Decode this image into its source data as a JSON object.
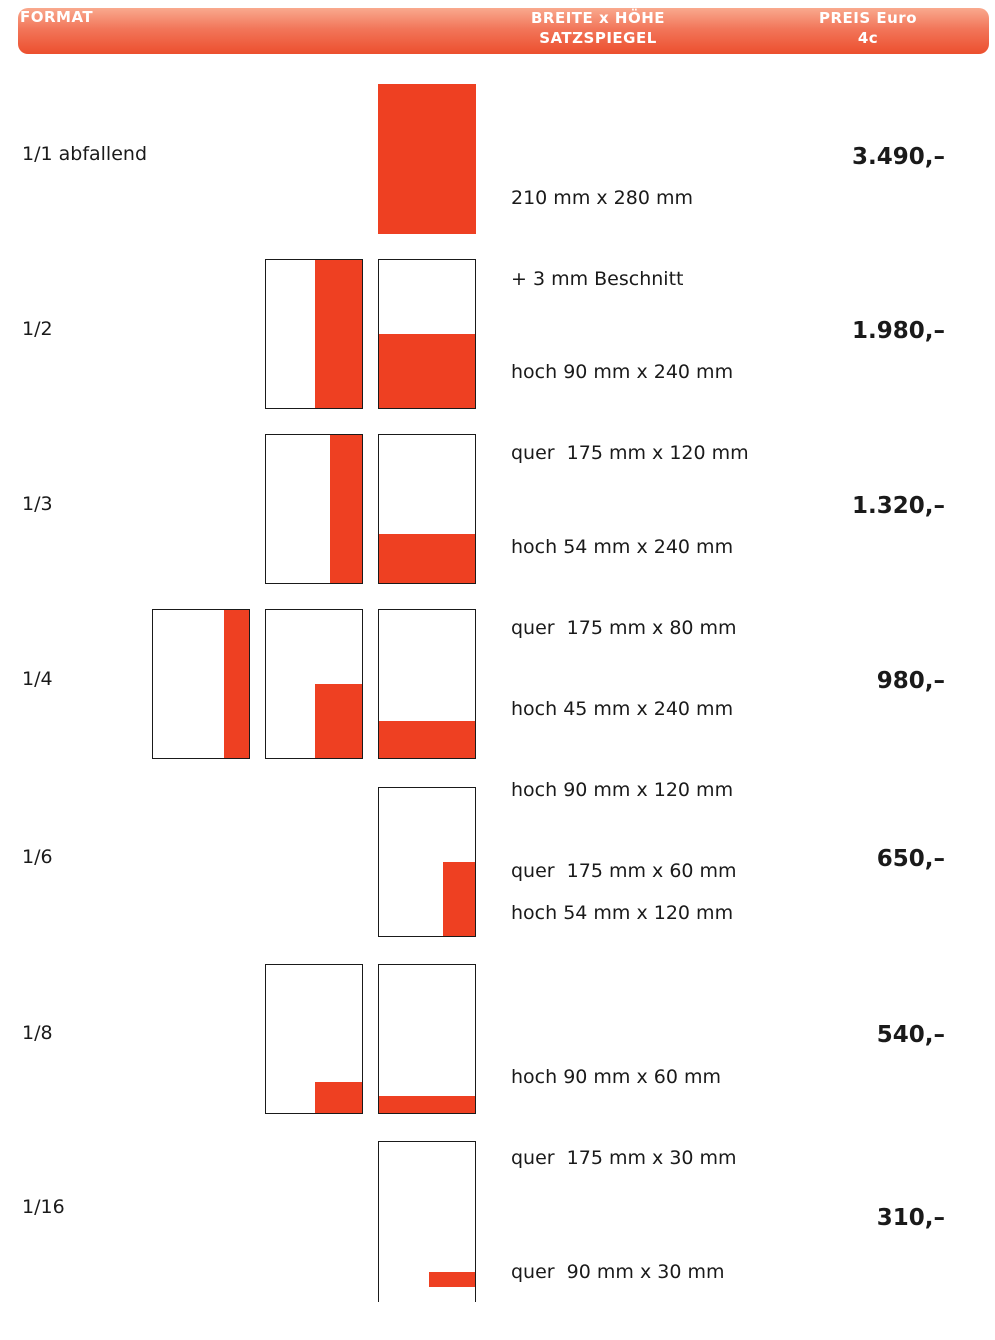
{
  "header": {
    "format": "FORMAT",
    "size_line1": "BREITE x HÖHE",
    "size_line2": "SATZSPIEGEL",
    "price_line1": "PREIS Euro",
    "price_line2": "4c"
  },
  "rows": [
    {
      "format": "1/1 abfallend",
      "dims": [
        "210 mm x 280 mm",
        "+ 3 mm Beschnitt"
      ],
      "price": "3.490,–"
    },
    {
      "format": "1/2",
      "dims": [
        "hoch 90 mm x 240 mm",
        "quer  175 mm x 120 mm"
      ],
      "price": "1.980,–"
    },
    {
      "format": "1/3",
      "dims": [
        "hoch 54 mm x 240 mm",
        "quer  175 mm x 80 mm"
      ],
      "price": "1.320,–"
    },
    {
      "format": "1/4",
      "dims": [
        "hoch 45 mm x 240 mm",
        "hoch 90 mm x 120 mm",
        "quer  175 mm x 60 mm"
      ],
      "price": "980,–"
    },
    {
      "format": "1/6",
      "dims": [
        "hoch 54 mm x 120 mm"
      ],
      "price": "650,–"
    },
    {
      "format": "1/8",
      "dims": [
        "hoch 90 mm x 60 mm",
        "quer  175 mm x 30 mm"
      ],
      "price": "540,–"
    },
    {
      "format": "1/16",
      "dims": [
        "quer  90 mm x 30 mm"
      ],
      "price": "310,–"
    }
  ],
  "colors": {
    "accent": "#ee4022",
    "header_top": "#f9a98e",
    "header_bottom": "#ec4f2e"
  }
}
